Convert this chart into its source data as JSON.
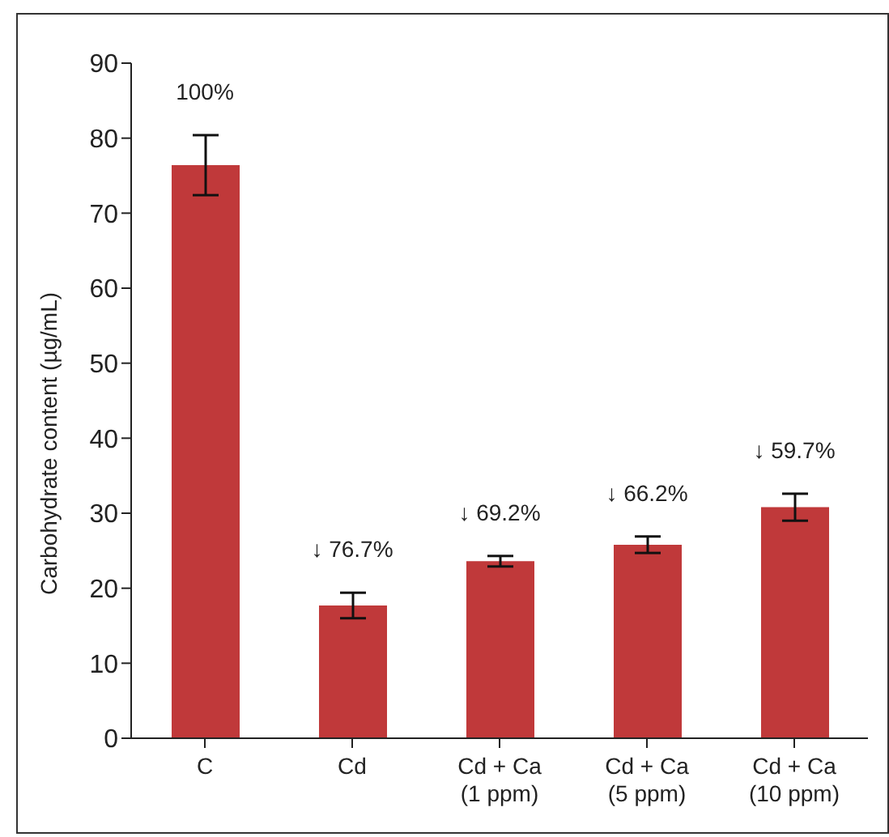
{
  "chart_data": {
    "type": "bar",
    "ylabel": "Carbohydrate content (µg/mL)",
    "categories": [
      "C",
      "Cd",
      "Cd + Ca (1 ppm)",
      "Cd + Ca (5 ppm)",
      "Cd + Ca (10 ppm)"
    ],
    "values": [
      76.4,
      17.7,
      23.6,
      25.8,
      30.8
    ],
    "errors": [
      4.0,
      1.7,
      0.7,
      1.1,
      1.8
    ],
    "annotations": [
      {
        "text": "100%",
        "x": "C",
        "y": 76.4
      },
      {
        "text": "↓ 76.7%",
        "x": "Cd",
        "y": 17.7
      },
      {
        "text": "↓ 69.2%",
        "x": "Cd + Ca (1 ppm)",
        "y": 23.6
      },
      {
        "text": "↓ 66.2%",
        "x": "Cd + Ca (5 ppm)",
        "y": 25.8
      },
      {
        "text": "↓ 59.7%",
        "x": "Cd + Ca (10 ppm)",
        "y": 30.8
      }
    ],
    "color": "#c0393a",
    "ylim": [
      0,
      90
    ],
    "yticks": [
      0,
      10,
      20,
      30,
      40,
      50,
      60,
      70,
      80,
      90
    ],
    "grid": false,
    "legend": false
  }
}
